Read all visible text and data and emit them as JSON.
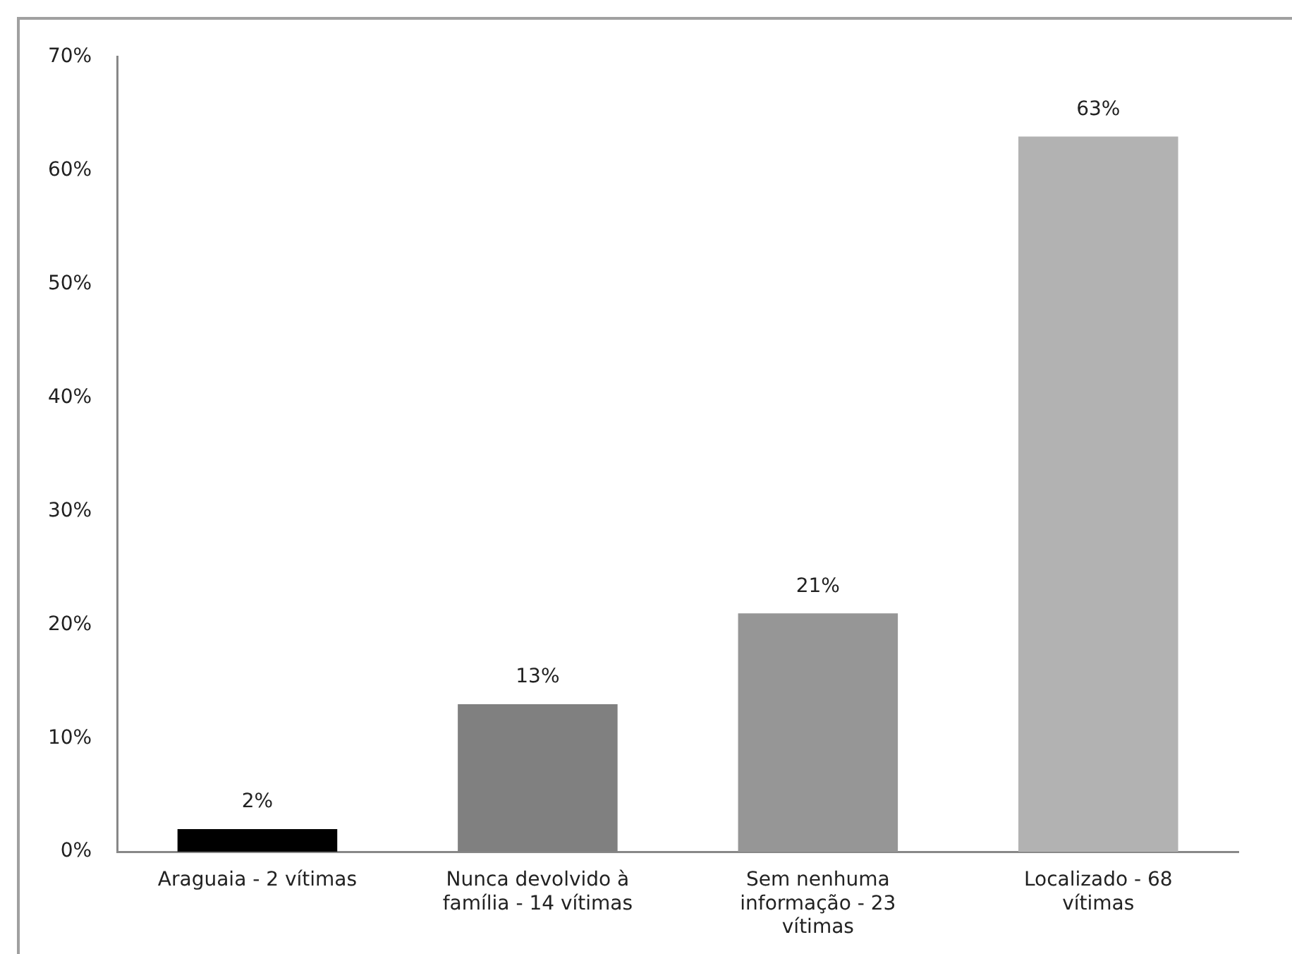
{
  "chart_data": {
    "type": "bar",
    "categories": [
      "Araguaia - 2 vítimas",
      "Nunca devolvido à família - 14 vítimas",
      "Sem nenhuma informação - 23 vítimas",
      "Localizado - 68 vítimas"
    ],
    "values": [
      2,
      13,
      21,
      63
    ],
    "colors": [
      "#000000",
      "#808080",
      "#969696",
      "#b2b2b2"
    ],
    "value_labels": [
      "2%",
      "13%",
      "21%",
      "63%"
    ],
    "ylim": [
      0,
      70
    ],
    "yticks": [
      {
        "value": 0,
        "label": "0%"
      },
      {
        "value": 10,
        "label": "10%"
      },
      {
        "value": 20,
        "label": "20%"
      },
      {
        "value": 30,
        "label": "30%"
      },
      {
        "value": 40,
        "label": "40%"
      },
      {
        "value": 50,
        "label": "50%"
      },
      {
        "value": 60,
        "label": "60%"
      },
      {
        "value": 70,
        "label": "70%"
      }
    ],
    "grid": false,
    "legend": false
  }
}
